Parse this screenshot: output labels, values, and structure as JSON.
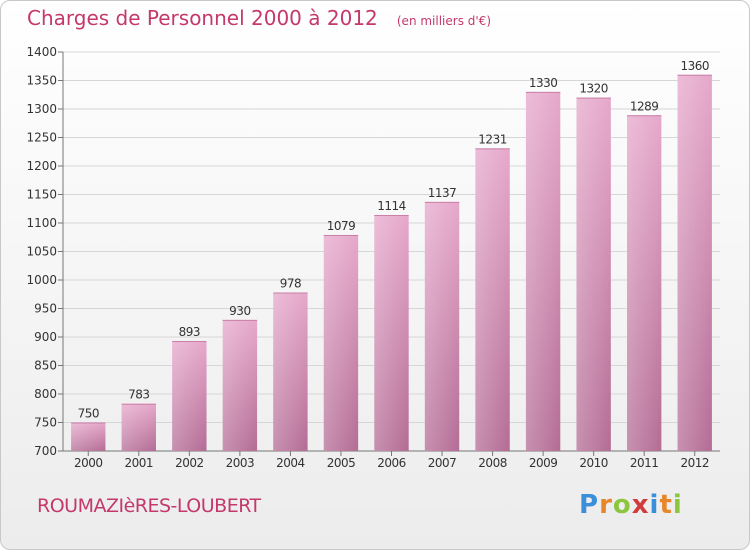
{
  "chart_data": {
    "type": "bar",
    "title": "Charges de Personnel 2000 à 2012",
    "subtitle": "(en milliers d'€)",
    "categories": [
      "2000",
      "2001",
      "2002",
      "2003",
      "2004",
      "2005",
      "2006",
      "2007",
      "2008",
      "2009",
      "2010",
      "2011",
      "2012"
    ],
    "values": [
      750,
      783,
      893,
      930,
      978,
      1079,
      1114,
      1137,
      1231,
      1330,
      1320,
      1289,
      1360
    ],
    "ylim": [
      700,
      1400
    ],
    "yticks": [
      700,
      750,
      800,
      850,
      900,
      950,
      1000,
      1050,
      1100,
      1150,
      1200,
      1250,
      1300,
      1350,
      1400
    ],
    "xlabel": "",
    "ylabel": "",
    "grid": true,
    "bar_color": "#d98fb7"
  },
  "footer": {
    "city": "ROUMAZIèRES-LOUBERT",
    "brand_letters": [
      "P",
      "r",
      "o",
      "x",
      "i",
      "t",
      "i"
    ],
    "brand_colors": [
      "#3b8fd8",
      "#e8862a",
      "#8cc63f",
      "#d23b3b",
      "#3b8fd8",
      "#e8862a",
      "#8cc63f"
    ]
  },
  "colors": {
    "accent": "#c4386b"
  }
}
